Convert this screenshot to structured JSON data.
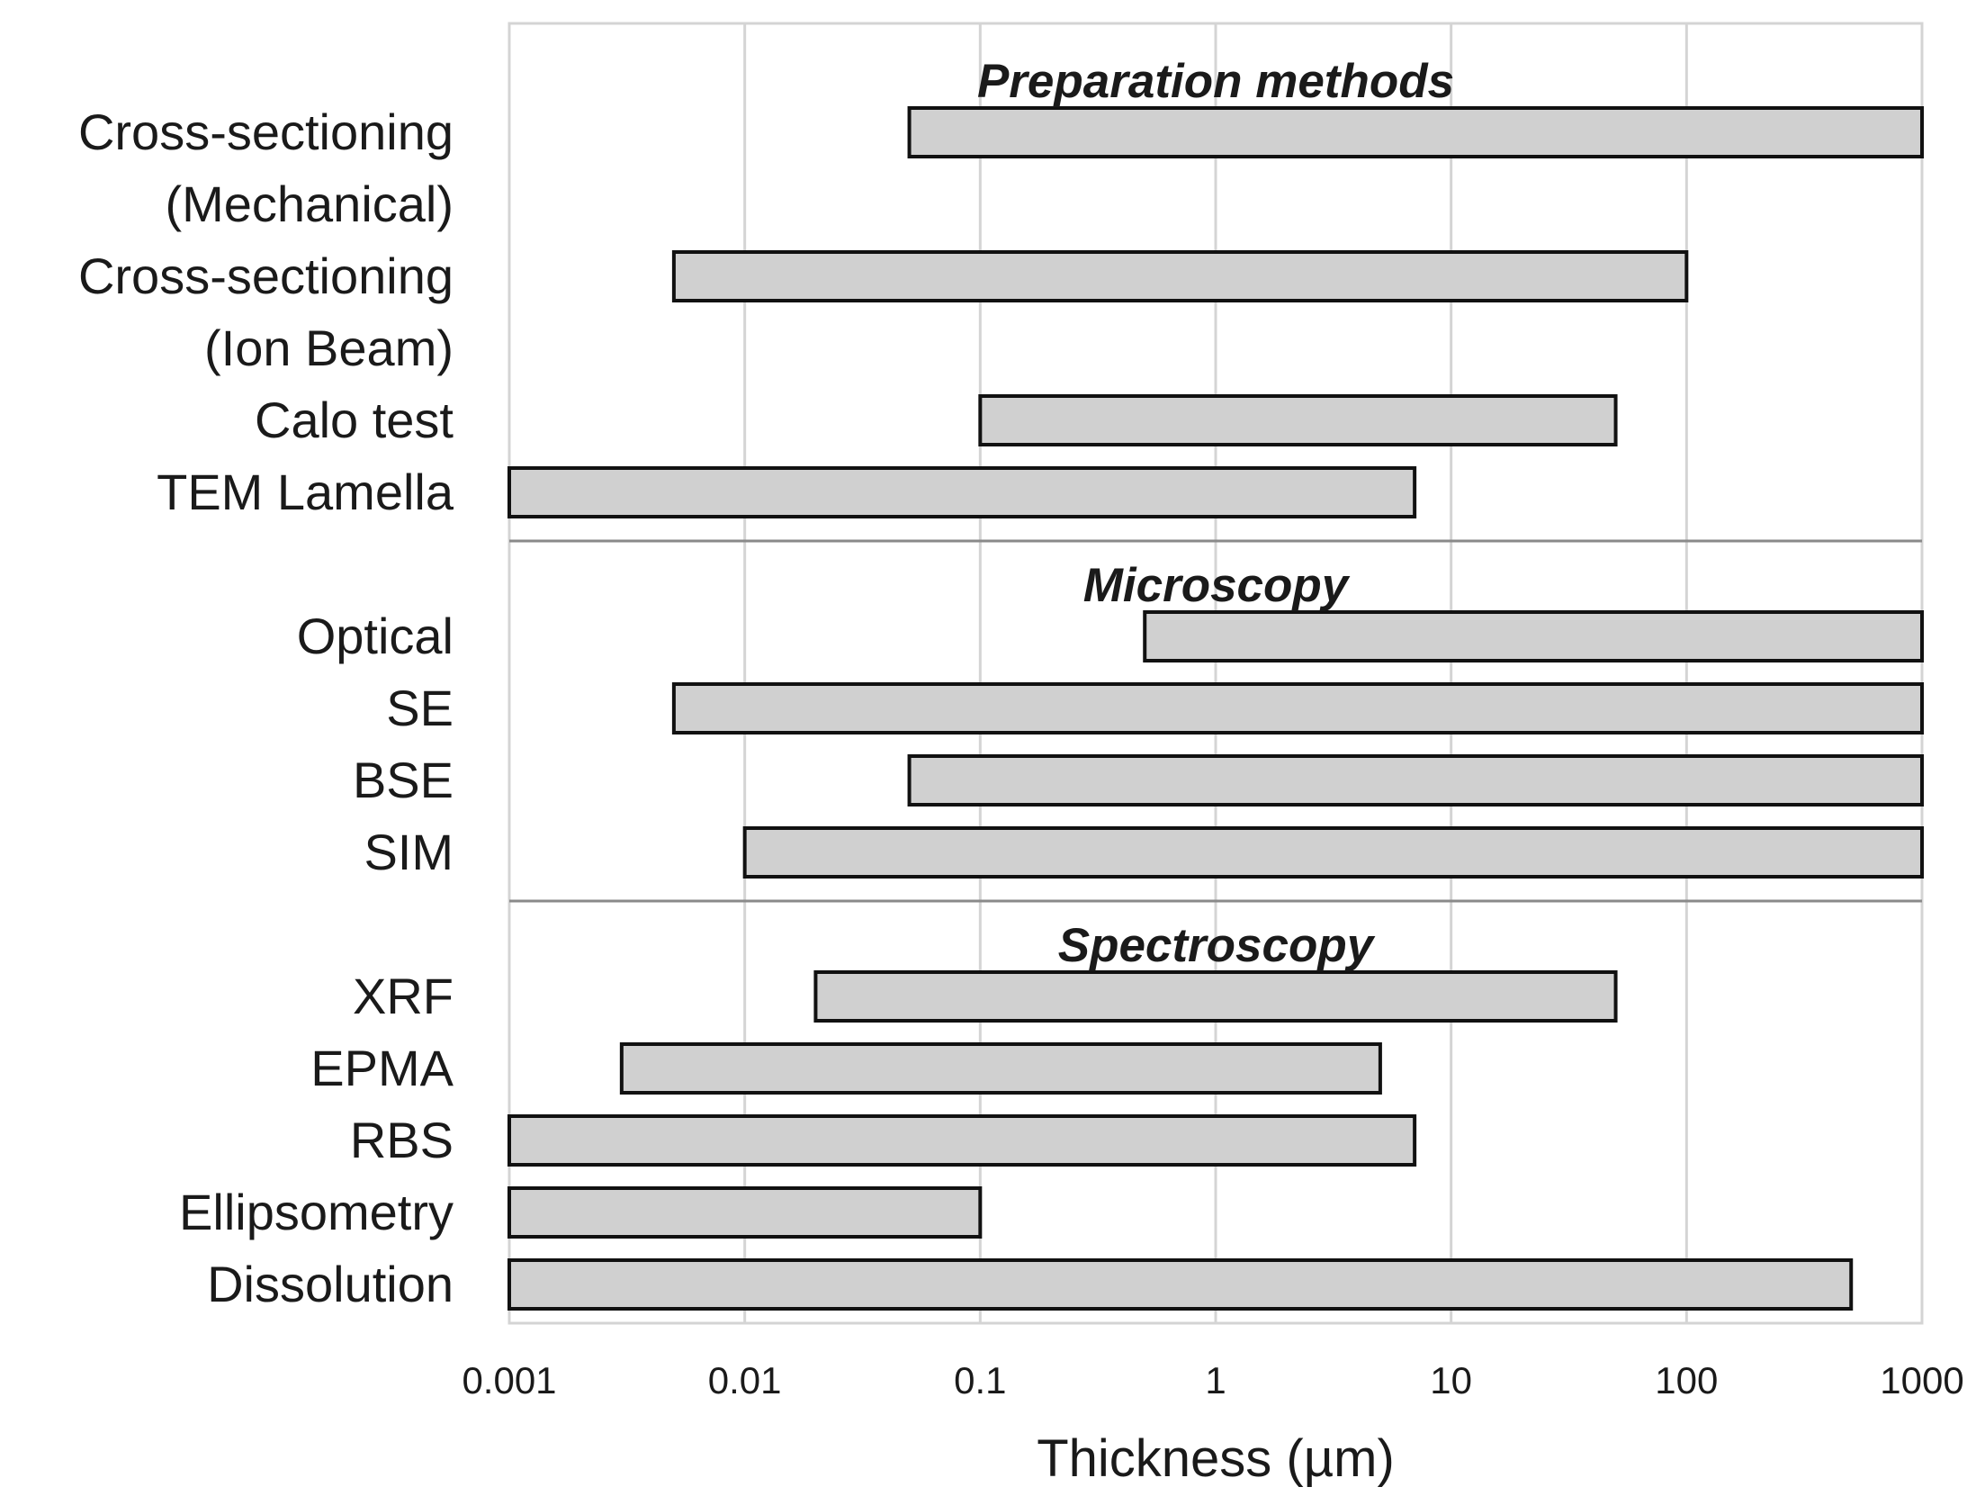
{
  "chart_data": {
    "type": "bar",
    "orientation": "horizontal-range",
    "title": "",
    "xlabel": "Thickness (µm)",
    "ylabel": "",
    "x_scale": "log",
    "xlim": [
      0.001,
      1000
    ],
    "x_ticks": [
      {
        "value": 0.001,
        "label": "0.001"
      },
      {
        "value": 0.01,
        "label": "0.01"
      },
      {
        "value": 0.1,
        "label": "0.1"
      },
      {
        "value": 1,
        "label": "1"
      },
      {
        "value": 10,
        "label": "10"
      },
      {
        "value": 100,
        "label": "100"
      },
      {
        "value": 1000,
        "label": "1000"
      }
    ],
    "grid": true,
    "sections": [
      {
        "title": "Preparation methods",
        "items": [
          {
            "label": [
              "Cross-sectioning",
              "(Mechanical)"
            ],
            "min": 0.05,
            "max": 1000
          },
          {
            "label": [
              "Cross-sectioning",
              "(Ion Beam)"
            ],
            "min": 0.005,
            "max": 100
          },
          {
            "label": [
              "Calo test"
            ],
            "min": 0.1,
            "max": 50
          },
          {
            "label": [
              "TEM Lamella"
            ],
            "min": 0.001,
            "max": 7
          }
        ]
      },
      {
        "title": "Microscopy",
        "items": [
          {
            "label": [
              "Optical"
            ],
            "min": 0.5,
            "max": 1000
          },
          {
            "label": [
              "SE"
            ],
            "min": 0.005,
            "max": 1000
          },
          {
            "label": [
              "BSE"
            ],
            "min": 0.05,
            "max": 1000
          },
          {
            "label": [
              "SIM"
            ],
            "min": 0.01,
            "max": 1000
          }
        ]
      },
      {
        "title": "Spectroscopy",
        "items": [
          {
            "label": [
              "XRF"
            ],
            "min": 0.02,
            "max": 50
          },
          {
            "label": [
              "EPMA"
            ],
            "min": 0.003,
            "max": 5
          },
          {
            "label": [
              "RBS"
            ],
            "min": 0.001,
            "max": 7
          },
          {
            "label": [
              "Ellipsometry"
            ],
            "min": 0.001,
            "max": 0.1
          },
          {
            "label": [
              "Dissolution"
            ],
            "min": 0.001,
            "max": 500
          }
        ]
      }
    ],
    "colors": {
      "bar_fill": "#d0d0d0",
      "bar_stroke": "#111111",
      "grid": "#d4d4d4"
    }
  }
}
